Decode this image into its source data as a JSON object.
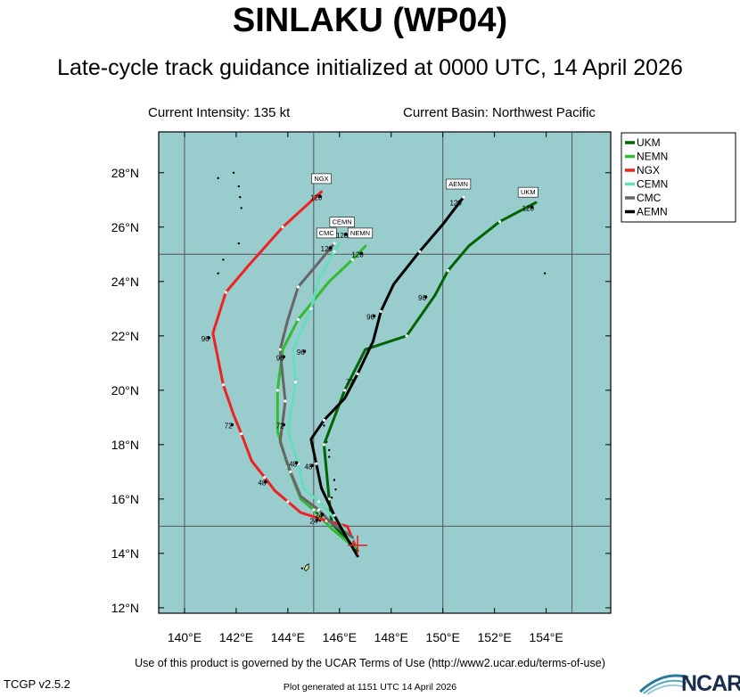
{
  "header": {
    "title": "SINLAKU (WP04)",
    "subtitle": "Late-cycle track guidance initialized at 0000 UTC, 14 April 2026",
    "intensity": "Current Intensity: 135 kt",
    "basin": "Current Basin: Northwest Pacific"
  },
  "footer": {
    "terms": "Use of this product is governed by the UCAR Terms of Use (http://www2.ucar.edu/terms-of-use)",
    "version": "TCGP v2.5.2",
    "generated": "Plot generated at 1151 UTC   14 April 2026",
    "logo_text": "NCAR"
  },
  "chart_data": {
    "type": "line",
    "xlim": [
      139,
      156.5
    ],
    "ylim": [
      11.8,
      29.5
    ],
    "x_ticks": [
      140,
      142,
      144,
      146,
      148,
      150,
      152,
      154
    ],
    "x_tick_labels": [
      "140°E",
      "142°E",
      "144°E",
      "146°E",
      "148°E",
      "150°E",
      "152°E",
      "154°E"
    ],
    "y_ticks": [
      12,
      14,
      16,
      18,
      20,
      22,
      24,
      26,
      28
    ],
    "y_tick_labels": [
      "12°N",
      "14°N",
      "16°N",
      "18°N",
      "20°N",
      "22°N",
      "24°N",
      "26°N",
      "28°N"
    ],
    "grid_lon": [
      140,
      145,
      150,
      155
    ],
    "grid_lat": [
      15,
      25
    ],
    "background_color": "#99cccc",
    "current_position": [
      146.7,
      14.3
    ],
    "legend_position": "top-right",
    "series": [
      {
        "name": "UKM",
        "color": "#006400",
        "points": [
          [
            146.7,
            14.1
          ],
          [
            145.7,
            15.1
          ],
          [
            145.6,
            16.0
          ],
          [
            145.5,
            17.0
          ],
          [
            145.4,
            18.0
          ],
          [
            145.8,
            19.0
          ],
          [
            146.2,
            20.0
          ],
          [
            147.0,
            21.5
          ],
          [
            148.6,
            22.0
          ],
          [
            149.7,
            23.5
          ],
          [
            150.2,
            24.4
          ],
          [
            151.0,
            25.3
          ],
          [
            152.2,
            26.2
          ],
          [
            153.6,
            26.9
          ]
        ],
        "labels": [
          {
            "text": "96",
            "lon": 149.2,
            "lat": 23.3
          },
          {
            "text": "120",
            "lon": 153.3,
            "lat": 26.6
          }
        ],
        "tag": {
          "text": "UKM",
          "lon": 153.3,
          "lat": 27.2
        }
      },
      {
        "name": "NEMN",
        "color": "#33bb33",
        "points": [
          [
            146.6,
            14.2
          ],
          [
            145.7,
            14.9
          ],
          [
            145.0,
            15.6
          ],
          [
            144.5,
            16.0
          ],
          [
            144.0,
            17.2
          ],
          [
            143.6,
            18.5
          ],
          [
            143.6,
            20.0
          ],
          [
            143.8,
            21.5
          ],
          [
            144.4,
            22.6
          ],
          [
            145.6,
            24.0
          ],
          [
            146.5,
            24.8
          ],
          [
            147.0,
            25.3
          ]
        ],
        "labels": [
          {
            "text": "120",
            "lon": 146.7,
            "lat": 24.9
          }
        ],
        "tag": {
          "text": "NEMN",
          "lon": 146.8,
          "lat": 25.7
        }
      },
      {
        "name": "NGX",
        "color": "#ee2222",
        "points": [
          [
            146.6,
            14.3
          ],
          [
            146.3,
            15.0
          ],
          [
            145.5,
            15.2
          ],
          [
            144.5,
            15.5
          ],
          [
            144.0,
            15.9
          ],
          [
            143.5,
            16.3
          ],
          [
            143.1,
            16.8
          ],
          [
            142.6,
            17.4
          ],
          [
            142.2,
            18.4
          ],
          [
            141.9,
            19.1
          ],
          [
            141.5,
            20.2
          ],
          [
            141.1,
            22.1
          ],
          [
            141.6,
            23.6
          ],
          [
            142.4,
            24.5
          ],
          [
            143.8,
            26.0
          ],
          [
            145.3,
            27.3
          ]
        ],
        "labels": [
          {
            "text": "24",
            "lon": 145.0,
            "lat": 15.1
          },
          {
            "text": "48",
            "lon": 143.0,
            "lat": 16.5
          },
          {
            "text": "72",
            "lon": 141.7,
            "lat": 18.6
          },
          {
            "text": "96",
            "lon": 140.8,
            "lat": 21.8
          },
          {
            "text": "120",
            "lon": 145.1,
            "lat": 27.0
          }
        ],
        "tag": {
          "text": "NGX",
          "lon": 145.3,
          "lat": 27.7
        }
      },
      {
        "name": "CEMN",
        "color": "#66ddbb",
        "points": [
          [
            146.5,
            14.5
          ],
          [
            146.0,
            15.1
          ],
          [
            145.2,
            15.9
          ],
          [
            144.6,
            16.4
          ],
          [
            144.4,
            17.3
          ],
          [
            144.0,
            18.5
          ],
          [
            144.3,
            20.3
          ],
          [
            144.2,
            21.5
          ],
          [
            144.9,
            23.0
          ],
          [
            145.2,
            24.1
          ],
          [
            145.8,
            25.1
          ],
          [
            146.0,
            25.4
          ]
        ],
        "labels": [
          {
            "text": "96",
            "lon": 144.5,
            "lat": 21.3
          },
          {
            "text": "120",
            "lon": 146.1,
            "lat": 25.6
          }
        ],
        "tag": {
          "text": "CEMN",
          "lon": 146.1,
          "lat": 26.1
        }
      },
      {
        "name": "CMC",
        "color": "#666666",
        "points": [
          [
            146.5,
            14.6
          ],
          [
            145.7,
            15.1
          ],
          [
            145.2,
            15.6
          ],
          [
            144.5,
            16.1
          ],
          [
            144.1,
            17.0
          ],
          [
            143.7,
            18.1
          ],
          [
            143.9,
            19.6
          ],
          [
            143.8,
            20.5
          ],
          [
            143.7,
            21.5
          ],
          [
            144.0,
            22.6
          ],
          [
            144.4,
            23.8
          ],
          [
            145.2,
            24.7
          ],
          [
            145.8,
            25.4
          ]
        ],
        "labels": [
          {
            "text": "48",
            "lon": 144.2,
            "lat": 17.2
          },
          {
            "text": "72",
            "lon": 143.7,
            "lat": 18.6
          },
          {
            "text": "96",
            "lon": 143.7,
            "lat": 21.1
          },
          {
            "text": "120",
            "lon": 145.5,
            "lat": 25.1
          }
        ],
        "tag": {
          "text": "CMC",
          "lon": 145.5,
          "lat": 25.7
        }
      },
      {
        "name": "AEMN",
        "color": "#000000",
        "points": [
          [
            146.7,
            13.9
          ],
          [
            146.2,
            14.7
          ],
          [
            145.8,
            15.4
          ],
          [
            145.3,
            16.4
          ],
          [
            145.1,
            17.3
          ],
          [
            144.9,
            18.2
          ],
          [
            145.4,
            18.9
          ],
          [
            146.2,
            19.7
          ],
          [
            146.7,
            20.6
          ],
          [
            147.3,
            21.8
          ],
          [
            147.6,
            22.9
          ],
          [
            148.1,
            23.9
          ],
          [
            149.1,
            25.1
          ],
          [
            150.0,
            26.1
          ],
          [
            150.8,
            27.1
          ]
        ],
        "labels": [
          {
            "text": "24",
            "lon": 145.2,
            "lat": 15.3
          },
          {
            "text": "48",
            "lon": 144.8,
            "lat": 17.1
          },
          {
            "text": "72",
            "lon": 146.4,
            "lat": 20.2
          },
          {
            "text": "96",
            "lon": 147.2,
            "lat": 22.6
          },
          {
            "text": "120",
            "lon": 150.5,
            "lat": 26.8
          }
        ],
        "tag": {
          "text": "AEMN",
          "lon": 150.6,
          "lat": 27.5
        }
      }
    ]
  }
}
